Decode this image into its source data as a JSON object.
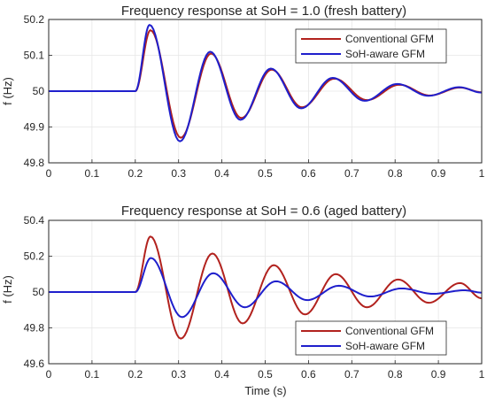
{
  "chart_data": [
    {
      "type": "line",
      "title": "Frequency response at SoH = 1.0 (fresh battery)",
      "xlabel": "",
      "ylabel": "f (Hz)",
      "xlim": [
        0,
        1
      ],
      "ylim": [
        49.8,
        50.2
      ],
      "xticks": [
        0,
        0.1,
        0.2,
        0.3,
        0.4,
        0.5,
        0.6,
        0.7,
        0.8,
        0.9,
        1
      ],
      "xtick_labels": [
        "0",
        "0.1",
        "0.2",
        "0.3",
        "0.4",
        "0.5",
        "0.6",
        "0.7",
        "0.8",
        "0.9",
        "1"
      ],
      "yticks": [
        49.8,
        49.9,
        50,
        50.1,
        50.2
      ],
      "ytick_labels": [
        "49.8",
        "49.9",
        "50",
        "50.1",
        "50.2"
      ],
      "grid": true,
      "legend_position": "top-right",
      "series": [
        {
          "name": "Conventional GFM",
          "color": "#b2221e",
          "x": [
            0,
            0.2,
            0.235,
            0.305,
            0.375,
            0.445,
            0.515,
            0.585,
            0.66,
            0.735,
            0.81,
            0.88,
            0.95,
            1.0
          ],
          "y": [
            50.0,
            50.0,
            50.17,
            49.87,
            50.105,
            49.925,
            50.06,
            49.955,
            50.035,
            49.975,
            50.018,
            49.988,
            50.01,
            49.997
          ]
        },
        {
          "name": "SoH-aware GFM",
          "color": "#1f1fcc",
          "x": [
            0,
            0.2,
            0.233,
            0.303,
            0.373,
            0.443,
            0.513,
            0.583,
            0.656,
            0.73,
            0.805,
            0.877,
            0.948,
            1.0
          ],
          "y": [
            50.0,
            50.0,
            50.185,
            49.86,
            50.11,
            49.92,
            50.063,
            49.952,
            50.037,
            49.973,
            50.02,
            49.987,
            50.011,
            49.996
          ]
        }
      ]
    },
    {
      "type": "line",
      "title": "Frequency response at SoH = 0.6 (aged battery)",
      "xlabel": "Time (s)",
      "ylabel": "f (Hz)",
      "xlim": [
        0,
        1
      ],
      "ylim": [
        49.6,
        50.4
      ],
      "xticks": [
        0,
        0.1,
        0.2,
        0.3,
        0.4,
        0.5,
        0.6,
        0.7,
        0.8,
        0.9,
        1
      ],
      "xtick_labels": [
        "0",
        "0.1",
        "0.2",
        "0.3",
        "0.4",
        "0.5",
        "0.6",
        "0.7",
        "0.8",
        "0.9",
        "1"
      ],
      "yticks": [
        49.6,
        49.8,
        50,
        50.2,
        50.4
      ],
      "ytick_labels": [
        "49.6",
        "49.8",
        "50",
        "50.2",
        "50.4"
      ],
      "grid": true,
      "legend_position": "bottom-right",
      "series": [
        {
          "name": "Conventional GFM",
          "color": "#b2221e",
          "x": [
            0,
            0.2,
            0.235,
            0.305,
            0.378,
            0.448,
            0.52,
            0.592,
            0.663,
            0.735,
            0.807,
            0.878,
            0.95,
            1.0
          ],
          "y": [
            50.0,
            50.0,
            50.31,
            49.74,
            50.215,
            49.825,
            50.15,
            49.875,
            50.1,
            49.915,
            50.07,
            49.94,
            50.05,
            49.965
          ]
        },
        {
          "name": "SoH-aware GFM",
          "color": "#1f1fcc",
          "x": [
            0,
            0.2,
            0.236,
            0.308,
            0.38,
            0.453,
            0.525,
            0.597,
            0.67,
            0.743,
            0.815,
            0.888,
            0.96,
            1.0
          ],
          "y": [
            50.0,
            50.0,
            50.19,
            49.86,
            50.105,
            49.915,
            50.06,
            49.955,
            50.035,
            49.975,
            50.02,
            49.99,
            50.01,
            49.997
          ]
        }
      ]
    }
  ]
}
